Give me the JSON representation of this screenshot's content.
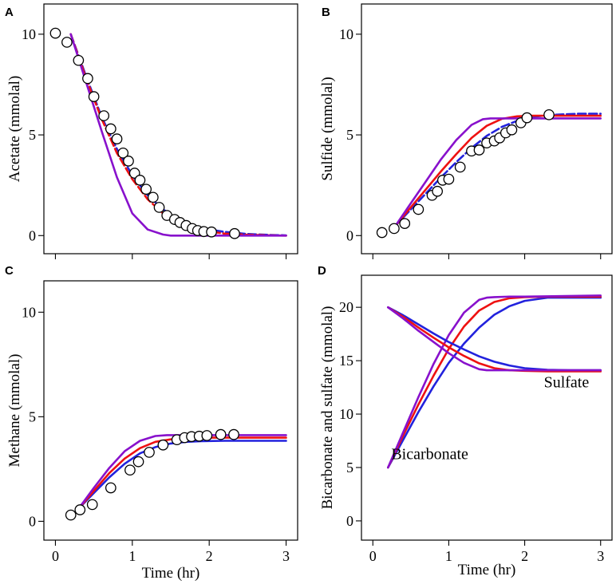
{
  "figure": {
    "description_note": "Four-panel time series figure"
  },
  "colors": {
    "blue": "#2222dd",
    "red": "#ee1111",
    "purple": "#8811cc",
    "frame": "#000000",
    "marker_fill": "#ffffff"
  },
  "chart_data": [
    {
      "panel": "A",
      "type": "line",
      "title": "",
      "xlabel": "",
      "ylabel": "Acetate (mmolal)",
      "xlim": [
        -0.15,
        3.15
      ],
      "ylim": [
        -0.9,
        11.5
      ],
      "xticks": [
        0,
        1,
        2,
        3
      ],
      "xtick_labels": [
        "",
        "",
        "",
        ""
      ],
      "yticks": [
        0,
        5,
        10
      ],
      "ytick_labels": [
        "0",
        "5",
        "10"
      ],
      "series": [
        {
          "name": "blue",
          "color": "blue",
          "dash": true,
          "x": [
            0.2,
            0.4,
            0.6,
            0.8,
            1.0,
            1.2,
            1.4,
            1.6,
            1.8,
            2.0,
            2.2,
            2.5,
            2.8,
            3.0
          ],
          "y": [
            10.0,
            7.9,
            5.9,
            4.3,
            3.0,
            2.0,
            1.3,
            0.8,
            0.5,
            0.3,
            0.18,
            0.08,
            0.03,
            0.01
          ]
        },
        {
          "name": "red",
          "color": "red",
          "dash": true,
          "x": [
            0.2,
            0.4,
            0.6,
            0.8,
            1.0,
            1.2,
            1.4,
            1.6,
            1.8,
            2.0,
            2.2,
            2.5,
            2.8,
            3.0
          ],
          "y": [
            10.0,
            7.8,
            5.8,
            4.1,
            2.8,
            1.8,
            1.1,
            0.65,
            0.38,
            0.2,
            0.1,
            0.04,
            0.01,
            0.0
          ]
        },
        {
          "name": "purple",
          "color": "purple",
          "dash": false,
          "x": [
            0.2,
            0.4,
            0.6,
            0.8,
            1.0,
            1.2,
            1.4,
            1.5,
            1.6,
            1.8,
            2.0,
            3.0
          ],
          "y": [
            10.0,
            7.6,
            5.2,
            2.9,
            1.1,
            0.3,
            0.05,
            0.0,
            0.0,
            0.0,
            0.0,
            0.0
          ]
        }
      ],
      "points": {
        "x": [
          0.0,
          0.15,
          0.3,
          0.42,
          0.5,
          0.63,
          0.72,
          0.8,
          0.88,
          0.95,
          1.03,
          1.1,
          1.18,
          1.27,
          1.35,
          1.45,
          1.55,
          1.62,
          1.7,
          1.78,
          1.85,
          1.93,
          2.03,
          2.33
        ],
        "y": [
          10.05,
          9.6,
          8.7,
          7.8,
          6.9,
          5.95,
          5.3,
          4.8,
          4.1,
          3.7,
          3.1,
          2.75,
          2.3,
          1.9,
          1.4,
          1.0,
          0.8,
          0.65,
          0.5,
          0.35,
          0.25,
          0.2,
          0.18,
          0.1
        ]
      },
      "annotations": []
    },
    {
      "panel": "B",
      "type": "line",
      "title": "",
      "xlabel": "",
      "ylabel": "Sulfide (mmolal)",
      "xlim": [
        -0.15,
        3.15
      ],
      "ylim": [
        -0.9,
        11.5
      ],
      "xticks": [
        0,
        1,
        2,
        3
      ],
      "xtick_labels": [
        "",
        "",
        "",
        ""
      ],
      "yticks": [
        0,
        5,
        10
      ],
      "ytick_labels": [
        "0",
        "5",
        "10"
      ],
      "series": [
        {
          "name": "blue",
          "color": "blue",
          "dash": true,
          "x": [
            0.3,
            0.5,
            0.7,
            0.9,
            1.1,
            1.3,
            1.5,
            1.7,
            1.9,
            2.1,
            2.4,
            2.7,
            3.0
          ],
          "y": [
            0.5,
            1.3,
            2.1,
            2.9,
            3.65,
            4.35,
            4.95,
            5.4,
            5.7,
            5.9,
            6.0,
            6.05,
            6.05
          ]
        },
        {
          "name": "red",
          "color": "red",
          "dash": false,
          "x": [
            0.3,
            0.5,
            0.7,
            0.9,
            1.1,
            1.3,
            1.5,
            1.7,
            1.9,
            2.1,
            2.4,
            2.7,
            3.0
          ],
          "y": [
            0.5,
            1.4,
            2.3,
            3.2,
            4.05,
            4.85,
            5.45,
            5.8,
            5.92,
            5.95,
            5.95,
            5.95,
            5.95
          ]
        },
        {
          "name": "purple",
          "color": "purple",
          "dash": false,
          "x": [
            0.3,
            0.5,
            0.7,
            0.9,
            1.1,
            1.3,
            1.45,
            1.55,
            1.7,
            2.0,
            3.0
          ],
          "y": [
            0.5,
            1.6,
            2.7,
            3.8,
            4.75,
            5.5,
            5.78,
            5.82,
            5.82,
            5.82,
            5.82
          ]
        }
      ],
      "points": {
        "x": [
          0.12,
          0.28,
          0.42,
          0.6,
          0.78,
          0.85,
          0.92,
          1.0,
          1.15,
          1.3,
          1.4,
          1.5,
          1.6,
          1.67,
          1.75,
          1.83,
          1.95,
          2.03,
          2.32
        ],
        "y": [
          0.15,
          0.35,
          0.6,
          1.3,
          2.0,
          2.2,
          2.75,
          2.8,
          3.4,
          4.2,
          4.25,
          4.6,
          4.7,
          4.85,
          5.1,
          5.25,
          5.6,
          5.85,
          6.0
        ]
      },
      "annotations": []
    },
    {
      "panel": "C",
      "type": "line",
      "title": "",
      "xlabel": "Time (hr)",
      "ylabel": "Methane (mmolal)",
      "xlim": [
        -0.15,
        3.15
      ],
      "ylim": [
        -0.9,
        11.5
      ],
      "xticks": [
        0,
        1,
        2,
        3
      ],
      "xtick_labels": [
        "0",
        "1",
        "2",
        "3"
      ],
      "yticks": [
        0,
        5,
        10
      ],
      "ytick_labels": [
        "0",
        "5",
        "10"
      ],
      "series": [
        {
          "name": "blue",
          "color": "blue",
          "dash": false,
          "x": [
            0.3,
            0.5,
            0.7,
            0.9,
            1.1,
            1.3,
            1.5,
            1.7,
            1.9,
            2.2,
            2.6,
            3.0
          ],
          "y": [
            0.6,
            1.35,
            2.1,
            2.75,
            3.25,
            3.55,
            3.72,
            3.8,
            3.83,
            3.85,
            3.85,
            3.85
          ]
        },
        {
          "name": "red",
          "color": "red",
          "dash": false,
          "x": [
            0.3,
            0.5,
            0.7,
            0.9,
            1.1,
            1.3,
            1.5,
            1.7,
            1.9,
            2.2,
            2.6,
            3.0
          ],
          "y": [
            0.6,
            1.45,
            2.3,
            3.0,
            3.5,
            3.8,
            3.92,
            3.97,
            4.0,
            4.0,
            4.0,
            4.0
          ]
        },
        {
          "name": "purple",
          "color": "purple",
          "dash": false,
          "x": [
            0.3,
            0.5,
            0.7,
            0.9,
            1.1,
            1.3,
            1.45,
            1.6,
            2.0,
            3.0
          ],
          "y": [
            0.6,
            1.6,
            2.55,
            3.35,
            3.85,
            4.08,
            4.12,
            4.12,
            4.12,
            4.12
          ]
        }
      ],
      "points": {
        "x": [
          0.2,
          0.32,
          0.48,
          0.72,
          0.97,
          1.08,
          1.22,
          1.4,
          1.58,
          1.68,
          1.77,
          1.87,
          1.97,
          2.15,
          2.32
        ],
        "y": [
          0.3,
          0.55,
          0.8,
          1.6,
          2.45,
          2.85,
          3.3,
          3.65,
          3.9,
          4.0,
          4.05,
          4.07,
          4.1,
          4.15,
          4.15
        ]
      },
      "annotations": []
    },
    {
      "panel": "D",
      "type": "line",
      "title": "",
      "xlabel": "Time (hr)",
      "ylabel": "Bicarbonate and sulfate (mmolal)",
      "xlim": [
        -0.15,
        3.15
      ],
      "ylim": [
        -1.8,
        23.0
      ],
      "xticks": [
        0,
        1,
        2,
        3
      ],
      "xtick_labels": [
        "0",
        "1",
        "2",
        "3"
      ],
      "yticks": [
        0,
        5,
        10,
        15,
        20
      ],
      "ytick_labels": [
        "0",
        "5",
        "10",
        "15",
        "20"
      ],
      "series": [
        {
          "name": "bicarbonate-blue",
          "color": "blue",
          "dash": false,
          "x": [
            0.2,
            0.4,
            0.6,
            0.8,
            1.0,
            1.2,
            1.4,
            1.6,
            1.8,
            2.0,
            2.3,
            2.6,
            3.0
          ],
          "y": [
            5.0,
            7.6,
            10.2,
            12.6,
            14.8,
            16.6,
            18.1,
            19.3,
            20.1,
            20.6,
            20.9,
            20.9,
            20.9
          ]
        },
        {
          "name": "bicarbonate-red",
          "color": "red",
          "dash": false,
          "x": [
            0.2,
            0.4,
            0.6,
            0.8,
            1.0,
            1.2,
            1.4,
            1.6,
            1.8,
            2.0,
            2.3,
            2.6,
            3.0
          ],
          "y": [
            5.0,
            8.0,
            10.9,
            13.6,
            16.1,
            18.2,
            19.7,
            20.5,
            20.85,
            20.95,
            21.0,
            21.0,
            21.0
          ]
        },
        {
          "name": "bicarbonate-purple",
          "color": "purple",
          "dash": false,
          "x": [
            0.2,
            0.4,
            0.6,
            0.8,
            1.0,
            1.2,
            1.4,
            1.5,
            1.6,
            1.8,
            2.0,
            3.0
          ],
          "y": [
            5.0,
            8.3,
            11.6,
            14.7,
            17.4,
            19.5,
            20.7,
            20.9,
            20.95,
            21.0,
            21.0,
            21.1
          ]
        },
        {
          "name": "sulfate-blue",
          "color": "blue",
          "dash": false,
          "x": [
            0.2,
            0.4,
            0.6,
            0.8,
            1.0,
            1.2,
            1.4,
            1.6,
            1.8,
            2.0,
            2.3,
            2.6,
            3.0
          ],
          "y": [
            20.0,
            19.25,
            18.4,
            17.55,
            16.75,
            16.05,
            15.4,
            14.9,
            14.55,
            14.3,
            14.15,
            14.1,
            14.1
          ]
        },
        {
          "name": "sulfate-red",
          "color": "red",
          "dash": false,
          "x": [
            0.2,
            0.4,
            0.6,
            0.8,
            1.0,
            1.2,
            1.4,
            1.6,
            1.8,
            2.0,
            2.3,
            2.6,
            3.0
          ],
          "y": [
            20.0,
            19.1,
            18.1,
            17.15,
            16.25,
            15.45,
            14.75,
            14.3,
            14.1,
            14.05,
            14.0,
            14.0,
            14.0
          ]
        },
        {
          "name": "sulfate-purple",
          "color": "purple",
          "dash": false,
          "x": [
            0.2,
            0.4,
            0.6,
            0.8,
            1.0,
            1.2,
            1.4,
            1.5,
            1.6,
            1.8,
            2.0,
            3.0
          ],
          "y": [
            20.0,
            18.95,
            17.8,
            16.75,
            15.7,
            14.8,
            14.2,
            14.1,
            14.1,
            14.1,
            14.1,
            14.1
          ]
        }
      ],
      "points": {
        "x": [],
        "y": []
      },
      "annotations": [
        {
          "text": "Sulfate",
          "x": 2.55,
          "y": 12.5
        },
        {
          "text": "Bicarbonate",
          "x": 0.75,
          "y": 5.8
        }
      ]
    }
  ]
}
